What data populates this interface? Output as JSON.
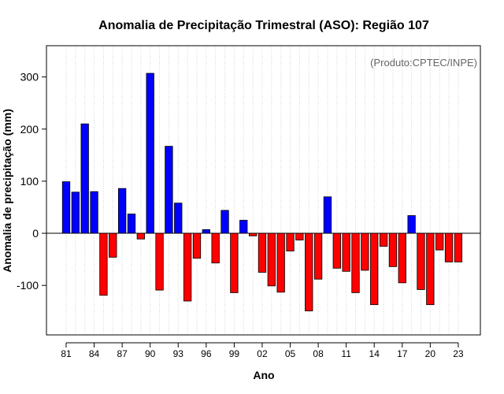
{
  "chart_data": {
    "type": "bar",
    "title": "Anomalia de Precipitação Trimestral (ASO): Região 107",
    "xlabel": "Ano",
    "ylabel": "Anomalia de precipitação (mm)",
    "credit": "(Produto:CPTEC/INPE)",
    "ylim": [
      -195,
      360
    ],
    "yticks": [
      -100,
      0,
      100,
      200,
      300
    ],
    "ytick_labels": [
      "-100",
      "0",
      "100",
      "200",
      "300"
    ],
    "grid": true,
    "x": [
      1981,
      1982,
      1983,
      1984,
      1985,
      1986,
      1987,
      1988,
      1989,
      1990,
      1991,
      1992,
      1993,
      1994,
      1995,
      1996,
      1997,
      1998,
      1999,
      2000,
      2001,
      2002,
      2003,
      2004,
      2005,
      2006,
      2007,
      2008,
      2009,
      2010,
      2011,
      2012,
      2013,
      2014,
      2015,
      2016,
      2017,
      2018,
      2019,
      2020,
      2021,
      2022,
      2023
    ],
    "values": [
      99,
      79,
      210,
      80,
      -119,
      -46,
      86,
      37,
      -11,
      307,
      -109,
      167,
      58,
      -130,
      -48,
      7,
      -57,
      44,
      -114,
      25,
      -5,
      -75,
      -101,
      -113,
      -34,
      -13,
      -149,
      -88,
      70,
      -67,
      -73,
      -114,
      -71,
      -137,
      -25,
      -64,
      -95,
      34,
      -108,
      -137,
      -32,
      -55,
      -55
    ],
    "xtick_years": [
      1981,
      1984,
      1987,
      1990,
      1993,
      1996,
      1999,
      2002,
      2005,
      2008,
      2011,
      2014,
      2017,
      2020,
      2023
    ],
    "xtick_labels": [
      "81",
      "84",
      "87",
      "90",
      "93",
      "96",
      "99",
      "02",
      "05",
      "08",
      "11",
      "14",
      "17",
      "20",
      "23"
    ],
    "positive_color": "#0000ff",
    "negative_color": "#ff0000",
    "grid_color": "#d3d3d3"
  }
}
